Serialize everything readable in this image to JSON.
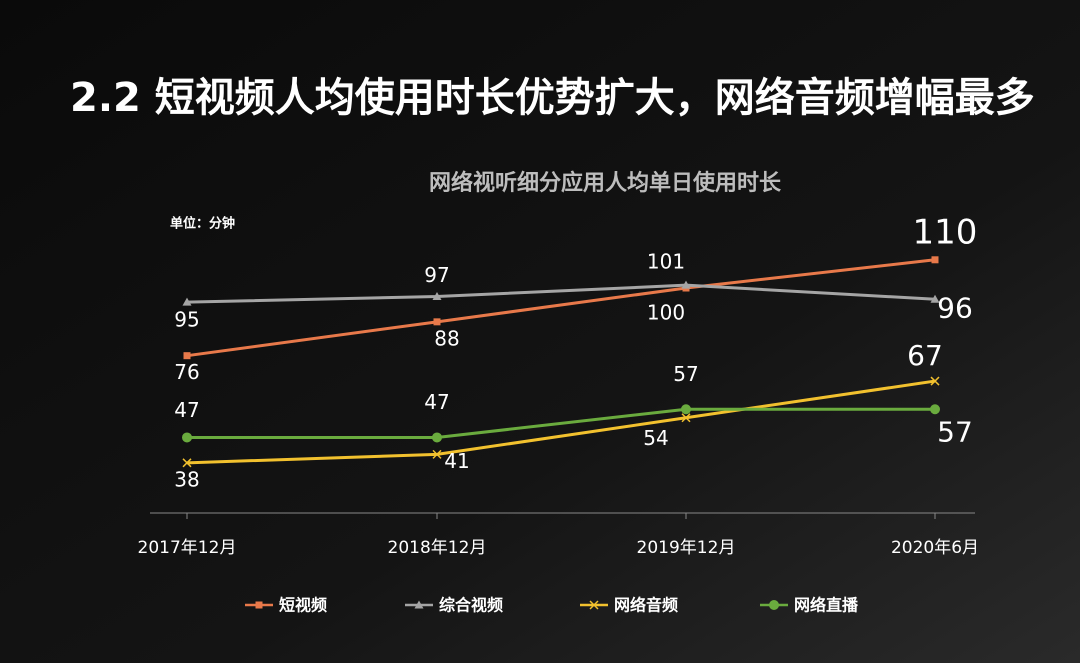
{
  "chart_data": {
    "type": "line",
    "title": "2.2 短视频人均使用时长优势扩大，网络音频增幅最多",
    "subtitle": "网络视听细分应用人均单日使用时长",
    "unit": "单位：分钟",
    "categories": [
      "2017年12月",
      "2018年12月",
      "2019年12月",
      "2020年6月"
    ],
    "series": [
      {
        "name": "短视频",
        "color": "#e8794a",
        "marker": "square",
        "values": [
          76,
          88,
          100,
          110
        ]
      },
      {
        "name": "综合视频",
        "color": "#a5a5a5",
        "marker": "triangle",
        "values": [
          95,
          97,
          101,
          96
        ]
      },
      {
        "name": "网络音频",
        "color": "#f2c12e",
        "marker": "x",
        "values": [
          38,
          41,
          54,
          67
        ]
      },
      {
        "name": "网络直播",
        "color": "#6aab3e",
        "marker": "circle",
        "values": [
          47,
          47,
          57,
          57
        ]
      }
    ]
  }
}
